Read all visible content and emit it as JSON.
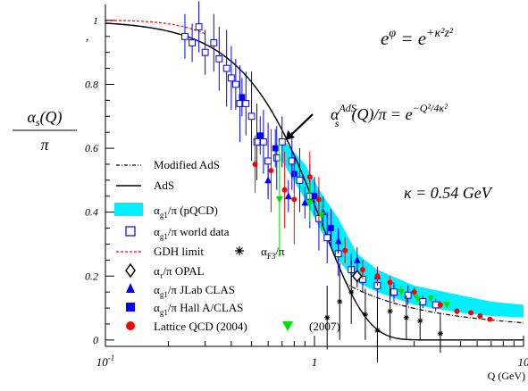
{
  "chart_data": {
    "type": "scatter",
    "xlabel": "Q (GeV)",
    "ylabel": {
      "num": "α",
      "num_sub": "s",
      "num_rest": "(Q)",
      "den": "π"
    },
    "x_scale": "log",
    "xlim": [
      0.1,
      10
    ],
    "ylim": [
      -0.02,
      1.05
    ],
    "x_ticks": [
      {
        "value": 0.1,
        "base": "10",
        "exp": "-1"
      },
      {
        "value": 1,
        "base": "1",
        "exp": ""
      },
      {
        "value": 10,
        "base": "10",
        "exp": ""
      }
    ],
    "y_ticks": [
      {
        "value": 0,
        "label": "0"
      },
      {
        "value": 0.2,
        "label": "0.2"
      },
      {
        "value": 0.4,
        "label": "0.4"
      },
      {
        "value": 0.6,
        "label": "0.6"
      },
      {
        "value": 0.8,
        "label": "0.8"
      },
      {
        "value": 1,
        "label": "1"
      }
    ],
    "colors": {
      "band": "#00f0ff",
      "blue": "#0000ff",
      "red": "#ff0000",
      "green": "#00e000",
      "black": "#000000"
    },
    "annotations": {
      "eq1": {
        "lhs": "e",
        "lhs_sup": "φ",
        "mid": " = e",
        "rhs_sup": "+κ²z²"
      },
      "eq2": {
        "lhs": "α",
        "lhs_sup": "AdS",
        "lhs_sub": "s",
        "mid": "(Q)/π = e",
        "rhs_sup": "−Q²/4κ²"
      },
      "kappa": {
        "text": "κ = 0.54 ",
        "unit": "GeV"
      },
      "stray_mark": ","
    },
    "legend": [
      {
        "id": "modified-ads",
        "marker": "dashdot-line",
        "label": "Modified AdS"
      },
      {
        "id": "ads",
        "marker": "solid-line",
        "label": "AdS"
      },
      {
        "id": "pqcd-band",
        "marker": "band",
        "label_main": "α",
        "label_sub": "g1",
        "label_rest": "/π (pQCD)"
      },
      {
        "id": "world-data",
        "marker": "open-square",
        "label_main": "α",
        "label_sub": "g1",
        "label_rest": "/π world data"
      },
      {
        "id": "gdh",
        "marker": "red-dashed",
        "label": "GDH limit",
        "extra_marker": "star",
        "extra_main": "α",
        "extra_sub": "F3",
        "extra_rest": "/π"
      },
      {
        "id": "opal",
        "marker": "open-diamond",
        "label_main": "α",
        "label_sub": "τ",
        "label_rest": "/π OPAL"
      },
      {
        "id": "jlab",
        "marker": "triangle-up",
        "label_main": "α",
        "label_sub": "g1",
        "label_rest": "/π JLab CLAS"
      },
      {
        "id": "halla",
        "marker": "filled-square",
        "label_main": "α",
        "label_sub": "g1",
        "label_rest": "/π Hall A/CLAS"
      },
      {
        "id": "lattice",
        "marker": "red-circle",
        "label": "Lattice QCD (2004)",
        "extra_marker": "green-triangle-down",
        "extra_label": "(2007)"
      }
    ],
    "series": [
      {
        "name": "world data",
        "marker": "open-square",
        "color": "#0000ff",
        "points": [
          {
            "x": 0.24,
            "y": 0.95,
            "err": 0.07
          },
          {
            "x": 0.26,
            "y": 0.93,
            "err": 0.06
          },
          {
            "x": 0.28,
            "y": 0.98,
            "err": 0.08
          },
          {
            "x": 0.3,
            "y": 0.9,
            "err": 0.07
          },
          {
            "x": 0.33,
            "y": 0.93,
            "err": 0.09
          },
          {
            "x": 0.35,
            "y": 0.88,
            "err": 0.1
          },
          {
            "x": 0.38,
            "y": 0.85,
            "err": 0.12
          },
          {
            "x": 0.4,
            "y": 0.82,
            "err": 0.1
          },
          {
            "x": 0.42,
            "y": 0.8,
            "err": 0.08
          },
          {
            "x": 0.44,
            "y": 0.74,
            "err": 0.12
          },
          {
            "x": 0.47,
            "y": 0.74,
            "err": 0.1
          },
          {
            "x": 0.5,
            "y": 0.7,
            "err": 0.14
          },
          {
            "x": 0.53,
            "y": 0.62,
            "err": 0.12
          },
          {
            "x": 0.57,
            "y": 0.62,
            "err": 0.1
          },
          {
            "x": 0.6,
            "y": 0.56,
            "err": 0.12
          },
          {
            "x": 0.66,
            "y": 0.57,
            "err": 0.1
          },
          {
            "x": 0.7,
            "y": 0.62,
            "err": 0.08
          },
          {
            "x": 0.78,
            "y": 0.56,
            "err": 0.09
          },
          {
            "x": 0.85,
            "y": 0.5,
            "err": 0.1
          },
          {
            "x": 0.95,
            "y": 0.45,
            "err": 0.1
          },
          {
            "x": 1.05,
            "y": 0.38,
            "err": 0.1
          },
          {
            "x": 1.15,
            "y": 0.32,
            "err": 0.08
          },
          {
            "x": 1.3,
            "y": 0.27,
            "err": 0.07
          },
          {
            "x": 1.5,
            "y": 0.22,
            "err": 0.05
          },
          {
            "x": 1.7,
            "y": 0.19,
            "err": 0.04
          },
          {
            "x": 2.0,
            "y": 0.17,
            "err": 0.04
          },
          {
            "x": 2.4,
            "y": 0.15,
            "err": 0.03
          },
          {
            "x": 2.8,
            "y": 0.14,
            "err": 0.03
          },
          {
            "x": 3.3,
            "y": 0.12,
            "err": 0.02
          },
          {
            "x": 3.8,
            "y": 0.11,
            "err": 0.02
          }
        ]
      },
      {
        "name": "JLab CLAS",
        "marker": "triangle-up",
        "color": "#0000ff",
        "points": [
          {
            "x": 0.6,
            "y": 0.5,
            "err": 0.05
          },
          {
            "x": 0.75,
            "y": 0.45,
            "err": 0.05
          },
          {
            "x": 0.9,
            "y": 0.43,
            "err": 0.05
          },
          {
            "x": 1.1,
            "y": 0.4,
            "err": 0.05
          },
          {
            "x": 1.3,
            "y": 0.31,
            "err": 0.04
          },
          {
            "x": 1.6,
            "y": 0.25,
            "err": 0.04
          },
          {
            "x": 2.0,
            "y": 0.2,
            "err": 0.03
          }
        ]
      },
      {
        "name": "Hall A/CLAS",
        "marker": "filled-square",
        "color": "#0000ff",
        "points": [
          {
            "x": 0.45,
            "y": 0.76,
            "err": 0.06
          },
          {
            "x": 0.55,
            "y": 0.64,
            "err": 0.06
          },
          {
            "x": 0.65,
            "y": 0.6,
            "err": 0.06
          },
          {
            "x": 0.8,
            "y": 0.52,
            "err": 0.06
          },
          {
            "x": 1.0,
            "y": 0.45,
            "err": 0.06
          },
          {
            "x": 1.2,
            "y": 0.35,
            "err": 0.06
          }
        ]
      },
      {
        "name": "F3",
        "marker": "star",
        "color": "#000000",
        "points": [
          {
            "x": 1.15,
            "y": 0.07,
            "err": 0.1
          },
          {
            "x": 1.32,
            "y": 0.12,
            "err": 0.12
          },
          {
            "x": 1.5,
            "y": 0.15,
            "err": 0.1
          },
          {
            "x": 1.75,
            "y": 0.08,
            "err": 0.08
          },
          {
            "x": 2.0,
            "y": 0.03,
            "err": 0.1
          },
          {
            "x": 2.3,
            "y": 0.09,
            "err": 0.09
          },
          {
            "x": 2.75,
            "y": 0.07,
            "err": 0.07
          },
          {
            "x": 3.2,
            "y": 0.06,
            "err": 0.06
          },
          {
            "x": 4.0,
            "y": 0.02,
            "err": 0.06
          }
        ]
      },
      {
        "name": "OPAL",
        "marker": "open-diamond",
        "color": "#000000",
        "points": [
          {
            "x": 1.6,
            "y": 0.2,
            "err": 0.035
          }
        ]
      },
      {
        "name": "Lattice QCD (2004)",
        "marker": "red-circle",
        "color": "#ff0000",
        "points": [
          {
            "x": 0.52,
            "y": 0.55,
            "err": 0.09
          },
          {
            "x": 0.62,
            "y": 0.53,
            "err": 0.13
          },
          {
            "x": 0.72,
            "y": 0.47,
            "err": 0.12
          },
          {
            "x": 0.8,
            "y": 0.44,
            "err": 0.14
          },
          {
            "x": 0.95,
            "y": 0.51,
            "err": 0.08
          },
          {
            "x": 1.05,
            "y": 0.44,
            "err": 0.07
          },
          {
            "x": 1.4,
            "y": 0.28,
            "err": 0.04
          },
          {
            "x": 1.7,
            "y": 0.22,
            "err": 0.03
          },
          {
            "x": 2.0,
            "y": 0.2,
            "err": 0.025
          },
          {
            "x": 2.3,
            "y": 0.18,
            "err": 0.02
          },
          {
            "x": 3.0,
            "y": 0.15,
            "err": 0.015
          },
          {
            "x": 4.0,
            "y": 0.11,
            "err": 0.012
          },
          {
            "x": 4.8,
            "y": 0.09,
            "err": 0.01
          },
          {
            "x": 5.6,
            "y": 0.085,
            "err": 0
          },
          {
            "x": 6.2,
            "y": 0.075,
            "err": 0
          },
          {
            "x": 6.9,
            "y": 0.065,
            "err": 0
          }
        ]
      },
      {
        "name": "(2007)",
        "marker": "green-triangle-down",
        "color": "#00e000",
        "points": [
          {
            "x": 0.68,
            "y": 0.44,
            "err": 0.18
          },
          {
            "x": 0.95,
            "y": 0.43,
            "err": 0.06
          },
          {
            "x": 1.08,
            "y": 0.39,
            "err": 0.05
          },
          {
            "x": 2.6,
            "y": 0.15,
            "err": 0.02
          },
          {
            "x": 3.1,
            "y": 0.13,
            "err": 0.015
          },
          {
            "x": 3.6,
            "y": 0.13,
            "err": 0.01
          },
          {
            "x": 4.3,
            "y": 0.11,
            "err": 0.01
          }
        ]
      }
    ],
    "curves": {
      "ads_kappa": 0.54,
      "band_lower": [
        [
          0.7,
          0.56
        ],
        [
          0.9,
          0.44
        ],
        [
          1.1,
          0.33
        ],
        [
          1.3,
          0.25
        ],
        [
          1.6,
          0.18
        ],
        [
          2,
          0.15
        ],
        [
          3,
          0.11
        ],
        [
          5,
          0.085
        ],
        [
          7,
          0.075
        ],
        [
          10,
          0.07
        ]
      ],
      "band_upper": [
        [
          0.7,
          0.63
        ],
        [
          0.9,
          0.55
        ],
        [
          1.1,
          0.45
        ],
        [
          1.3,
          0.38
        ],
        [
          1.6,
          0.27
        ],
        [
          2,
          0.22
        ],
        [
          3,
          0.17
        ],
        [
          5,
          0.14
        ],
        [
          7,
          0.12
        ],
        [
          10,
          0.11
        ]
      ]
    }
  }
}
